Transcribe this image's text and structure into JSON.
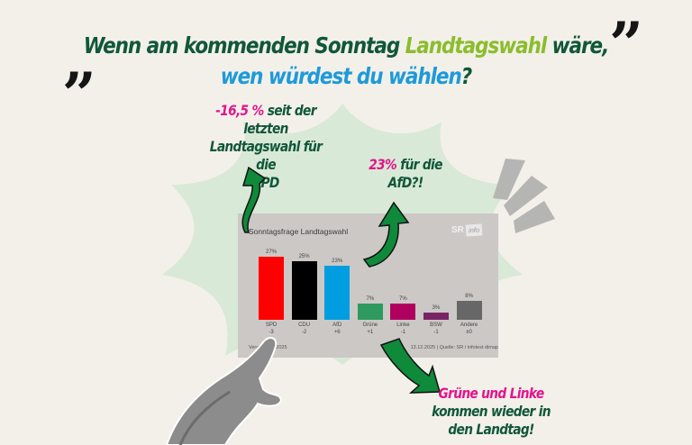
{
  "headline": {
    "line1_part1": "Wenn am kommenden Sonntag ",
    "line1_highlight": "Landtagswahl",
    "line1_part2": " wäre,",
    "line2_highlight": "wen würdest du wählen",
    "line2_end": "?",
    "quote_open": "„",
    "quote_close": "”"
  },
  "annotations": {
    "spd": {
      "highlight": "-16,5 %",
      "text1": " seit der",
      "text2": "letzten",
      "text3": "Landtagswahl für die",
      "text4": "SPD"
    },
    "afd": {
      "highlight": "23%",
      "text1": " für die",
      "text2": "AfD?!"
    },
    "gruene_linke": {
      "highlight": "Grüne und Linke",
      "text1": "kommen wieder in",
      "text2": "den Landtag!"
    }
  },
  "colors": {
    "dark_green": "#11573a",
    "light_green": "#8bbd2c",
    "blue": "#1e9ad9",
    "pink": "#e3138c",
    "background": "#f3f0ea",
    "arrow_green": "#0e8a3a"
  },
  "chart_card": {
    "title": "Sonntagsfrage Landtagswahl",
    "logo": "SR",
    "logo_tag": "info",
    "footer_left": "Vergleich ... 2025",
    "footer_right": "13.12.2025 | Quelle: SR / infotest dimap"
  },
  "chart_data": {
    "type": "bar",
    "title": "Sonntagsfrage Landtagswahl",
    "categories": [
      "SPD",
      "CDU",
      "AfD",
      "Grüne",
      "Linke",
      "BSW",
      "Andere"
    ],
    "values": [
      27,
      25,
      23,
      7,
      7,
      3,
      8
    ],
    "value_labels": [
      "27%",
      "25%",
      "23%",
      "7%",
      "7%",
      "3%",
      "8%"
    ],
    "change": [
      "-3",
      "-2",
      "+6",
      "+1",
      "-1",
      "-1",
      "±0"
    ],
    "colors": [
      "#ff0000",
      "#000000",
      "#009ee0",
      "#2e9a5f",
      "#b0005f",
      "#7a2466",
      "#676767"
    ],
    "xlabel": "",
    "ylabel": "",
    "ylim": [
      0,
      30
    ],
    "grid": false,
    "source": "Quelle: SR / infotest dimap",
    "date": "13.12.2025"
  }
}
